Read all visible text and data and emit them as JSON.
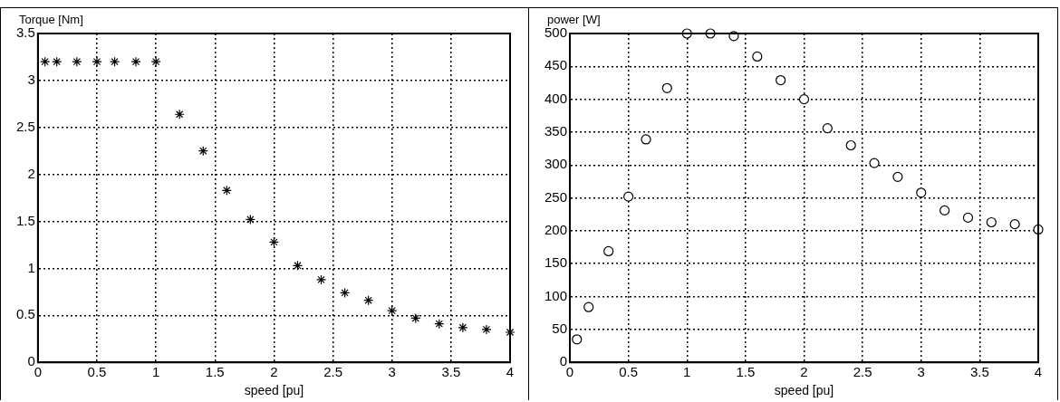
{
  "chart_data": [
    {
      "type": "scatter",
      "ylabel": "Torque [Nm]",
      "xlabel": "speed [pu]",
      "marker": "cross",
      "grid": true,
      "xlim": [
        0,
        4
      ],
      "ylim": [
        0,
        3.5
      ],
      "xticks": [
        0,
        0.5,
        1,
        1.5,
        2,
        2.5,
        3,
        3.5,
        4
      ],
      "yticks": [
        0,
        0.5,
        1,
        1.5,
        2,
        2.5,
        3,
        3.5
      ],
      "x": [
        0.06,
        0.16,
        0.33,
        0.5,
        0.65,
        0.83,
        1.0,
        1.2,
        1.4,
        1.6,
        1.8,
        2.0,
        2.2,
        2.4,
        2.6,
        2.8,
        3.0,
        3.2,
        3.4,
        3.6,
        3.8,
        4.0
      ],
      "series": [
        {
          "color": "#000000",
          "values": [
            3.2,
            3.2,
            3.2,
            3.2,
            3.2,
            3.2,
            3.2,
            2.64,
            2.25,
            1.83,
            1.52,
            1.28,
            1.03,
            0.88,
            0.74,
            0.66,
            0.55,
            0.47,
            0.41,
            0.37,
            0.35,
            0.32
          ]
        }
      ]
    },
    {
      "type": "scatter",
      "ylabel": "power [W]",
      "xlabel": "speed [pu]",
      "marker": "circle",
      "grid": true,
      "xlim": [
        0,
        4
      ],
      "ylim": [
        0,
        500
      ],
      "xticks": [
        0,
        0.5,
        1,
        1.5,
        2,
        2.5,
        3,
        3.5,
        4
      ],
      "yticks": [
        0,
        50,
        100,
        150,
        200,
        250,
        300,
        350,
        400,
        450,
        500
      ],
      "x": [
        0.06,
        0.16,
        0.33,
        0.5,
        0.65,
        0.83,
        1.0,
        1.2,
        1.4,
        1.6,
        1.8,
        2.0,
        2.2,
        2.4,
        2.6,
        2.8,
        3.0,
        3.2,
        3.4,
        3.6,
        3.8,
        4.0
      ],
      "series": [
        {
          "color": "#000000",
          "values": [
            35,
            84,
            169,
            252,
            339,
            417,
            500,
            500,
            496,
            465,
            429,
            400,
            356,
            330,
            303,
            282,
            258,
            231,
            220,
            213,
            210,
            202
          ]
        }
      ]
    }
  ]
}
